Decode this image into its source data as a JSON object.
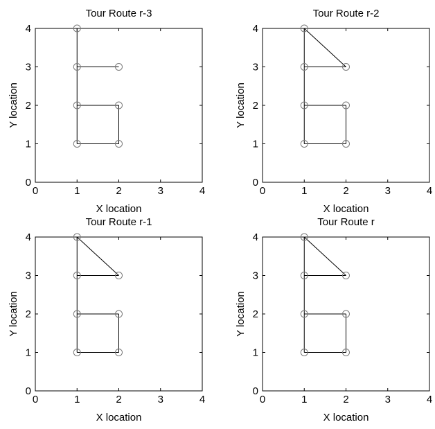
{
  "chart_data": [
    {
      "type": "line",
      "title": "Tour Route r-3",
      "xlabel": "X location",
      "ylabel": "Y location",
      "xlim": [
        0,
        4
      ],
      "ylim": [
        0,
        4
      ],
      "xticks": [
        0,
        1,
        2,
        3,
        4
      ],
      "yticks": [
        0,
        1,
        2,
        3,
        4
      ],
      "grid": false,
      "nodes": [
        [
          1,
          4
        ],
        [
          1,
          3
        ],
        [
          2,
          3
        ],
        [
          1,
          2
        ],
        [
          2,
          2
        ],
        [
          1,
          1
        ],
        [
          2,
          1
        ]
      ],
      "segments": [
        [
          [
            1,
            1
          ],
          [
            1,
            4
          ]
        ],
        [
          [
            1,
            3
          ],
          [
            2,
            3
          ]
        ],
        [
          [
            1,
            2
          ],
          [
            2,
            2
          ]
        ],
        [
          [
            2,
            2
          ],
          [
            2,
            1
          ]
        ],
        [
          [
            1,
            1
          ],
          [
            2,
            1
          ]
        ]
      ]
    },
    {
      "type": "line",
      "title": "Tour Route r-2",
      "xlabel": "X location",
      "ylabel": "Y location",
      "xlim": [
        0,
        4
      ],
      "ylim": [
        0,
        4
      ],
      "xticks": [
        0,
        1,
        2,
        3,
        4
      ],
      "yticks": [
        0,
        1,
        2,
        3,
        4
      ],
      "grid": false,
      "nodes": [
        [
          1,
          4
        ],
        [
          1,
          3
        ],
        [
          2,
          3
        ],
        [
          1,
          2
        ],
        [
          2,
          2
        ],
        [
          1,
          1
        ],
        [
          2,
          1
        ]
      ],
      "segments": [
        [
          [
            1,
            1
          ],
          [
            1,
            4
          ]
        ],
        [
          [
            1,
            4
          ],
          [
            2,
            3
          ]
        ],
        [
          [
            1,
            3
          ],
          [
            2,
            3
          ]
        ],
        [
          [
            1,
            2
          ],
          [
            2,
            2
          ]
        ],
        [
          [
            2,
            2
          ],
          [
            2,
            1
          ]
        ],
        [
          [
            1,
            1
          ],
          [
            2,
            1
          ]
        ]
      ]
    },
    {
      "type": "line",
      "title": "Tour Route r-1",
      "xlabel": "X location",
      "ylabel": "Y location",
      "xlim": [
        0,
        4
      ],
      "ylim": [
        0,
        4
      ],
      "xticks": [
        0,
        1,
        2,
        3,
        4
      ],
      "yticks": [
        0,
        1,
        2,
        3,
        4
      ],
      "grid": false,
      "nodes": [
        [
          1,
          4
        ],
        [
          1,
          3
        ],
        [
          2,
          3
        ],
        [
          1,
          2
        ],
        [
          2,
          2
        ],
        [
          1,
          1
        ],
        [
          2,
          1
        ]
      ],
      "segments": [
        [
          [
            1,
            1
          ],
          [
            1,
            4
          ]
        ],
        [
          [
            1,
            4
          ],
          [
            2,
            3
          ]
        ],
        [
          [
            1,
            3
          ],
          [
            2,
            3
          ]
        ],
        [
          [
            1,
            2
          ],
          [
            2,
            2
          ]
        ],
        [
          [
            2,
            2
          ],
          [
            2,
            1
          ]
        ],
        [
          [
            1,
            1
          ],
          [
            2,
            1
          ]
        ]
      ]
    },
    {
      "type": "line",
      "title": "Tour Route r",
      "xlabel": "X location",
      "ylabel": "Y location",
      "xlim": [
        0,
        4
      ],
      "ylim": [
        0,
        4
      ],
      "xticks": [
        0,
        1,
        2,
        3,
        4
      ],
      "yticks": [
        0,
        1,
        2,
        3,
        4
      ],
      "grid": false,
      "nodes": [
        [
          1,
          4
        ],
        [
          1,
          3
        ],
        [
          2,
          3
        ],
        [
          1,
          2
        ],
        [
          2,
          2
        ],
        [
          1,
          1
        ],
        [
          2,
          1
        ]
      ],
      "segments": [
        [
          [
            1,
            1
          ],
          [
            1,
            4
          ]
        ],
        [
          [
            1,
            4
          ],
          [
            2,
            3
          ]
        ],
        [
          [
            1,
            3
          ],
          [
            2,
            3
          ]
        ],
        [
          [
            1,
            2
          ],
          [
            2,
            2
          ]
        ],
        [
          [
            2,
            2
          ],
          [
            2,
            1
          ]
        ],
        [
          [
            1,
            1
          ],
          [
            2,
            1
          ]
        ]
      ]
    }
  ]
}
